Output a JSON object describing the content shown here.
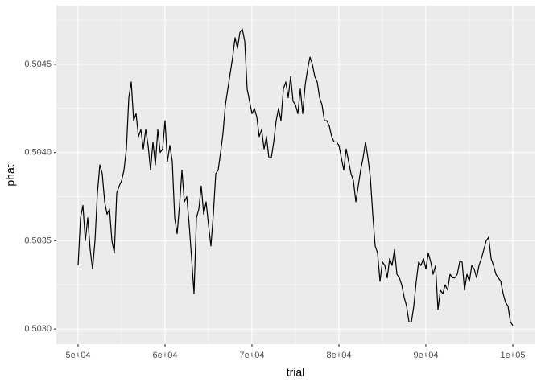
{
  "chart_data": {
    "type": "line",
    "x_label": "trial",
    "y_label": "phat",
    "color": "#000000",
    "grid": true,
    "xlim": [
      47500,
      102500
    ],
    "ylim": [
      0.502914,
      0.504832
    ],
    "xticks": [
      {
        "value": 50000,
        "label": "5e+04"
      },
      {
        "value": 60000,
        "label": "6e+04"
      },
      {
        "value": 70000,
        "label": "7e+04"
      },
      {
        "value": 80000,
        "label": "8e+04"
      },
      {
        "value": 90000,
        "label": "9e+04"
      },
      {
        "value": 100000,
        "label": "1e+05"
      }
    ],
    "yticks": [
      {
        "value": 0.503,
        "label": "0.5030"
      },
      0.5035,
      {
        "value": 0.504,
        "label": "0.5040"
      },
      0.5045
    ],
    "x": [
      50000,
      50278,
      50556,
      50833,
      51111,
      51389,
      51667,
      51944,
      52222,
      52500,
      52778,
      53056,
      53333,
      53611,
      53889,
      54167,
      54444,
      54722,
      55000,
      55278,
      55556,
      55833,
      56111,
      56389,
      56667,
      56944,
      57222,
      57500,
      57778,
      58056,
      58333,
      58611,
      58889,
      59167,
      59444,
      59722,
      60000,
      60278,
      60556,
      60833,
      61111,
      61389,
      61667,
      61944,
      62222,
      62500,
      62778,
      63056,
      63333,
      63611,
      63889,
      64167,
      64444,
      64722,
      65000,
      65278,
      65556,
      65833,
      66111,
      66389,
      66667,
      66944,
      67222,
      67500,
      67778,
      68056,
      68333,
      68611,
      68889,
      69167,
      69444,
      69722,
      70000,
      70278,
      70556,
      70833,
      71111,
      71389,
      71667,
      71944,
      72222,
      72500,
      72778,
      73056,
      73333,
      73611,
      73889,
      74167,
      74444,
      74722,
      75000,
      75278,
      75556,
      75833,
      76111,
      76389,
      76667,
      76944,
      77222,
      77500,
      77778,
      78056,
      78333,
      78611,
      78889,
      79167,
      79444,
      79722,
      80000,
      80278,
      80556,
      80833,
      81111,
      81389,
      81667,
      81944,
      82222,
      82500,
      82778,
      83056,
      83333,
      83611,
      83889,
      84167,
      84444,
      84722,
      85000,
      85278,
      85556,
      85833,
      86111,
      86389,
      86667,
      86944,
      87222,
      87500,
      87778,
      88056,
      88333,
      88611,
      88889,
      89167,
      89444,
      89722,
      90000,
      90278,
      90556,
      90833,
      91111,
      91389,
      91667,
      91944,
      92222,
      92500,
      92778,
      93056,
      93333,
      93611,
      93889,
      94167,
      94444,
      94722,
      95000,
      95278,
      95556,
      95833,
      96111,
      96389,
      96667,
      96944,
      97222,
      97500,
      97778,
      98056,
      98333,
      98611,
      98889,
      99167,
      99444,
      99722,
      100000
    ],
    "values": [
      0.50336,
      0.50363,
      0.5037,
      0.5035,
      0.50363,
      0.50345,
      0.50334,
      0.5035,
      0.50377,
      0.50393,
      0.50388,
      0.50372,
      0.50365,
      0.50368,
      0.5035,
      0.50343,
      0.50377,
      0.50381,
      0.50384,
      0.5039,
      0.50402,
      0.50431,
      0.5044,
      0.50418,
      0.50422,
      0.50409,
      0.50413,
      0.50402,
      0.50413,
      0.50404,
      0.5039,
      0.50406,
      0.50393,
      0.50413,
      0.504,
      0.50402,
      0.50418,
      0.50395,
      0.50404,
      0.50395,
      0.50363,
      0.50354,
      0.5037,
      0.5039,
      0.50372,
      0.50375,
      0.50359,
      0.5034,
      0.5032,
      0.50363,
      0.50368,
      0.50381,
      0.50365,
      0.50372,
      0.50359,
      0.50347,
      0.50365,
      0.50388,
      0.5039,
      0.504,
      0.50411,
      0.50427,
      0.50436,
      0.50445,
      0.50454,
      0.50465,
      0.50459,
      0.50468,
      0.5047,
      0.50463,
      0.50436,
      0.50429,
      0.50422,
      0.50425,
      0.5042,
      0.50409,
      0.50413,
      0.50402,
      0.50409,
      0.50397,
      0.50397,
      0.50406,
      0.50418,
      0.50425,
      0.50418,
      0.50436,
      0.5044,
      0.50431,
      0.50443,
      0.50429,
      0.50427,
      0.50422,
      0.50436,
      0.50422,
      0.50438,
      0.50447,
      0.50454,
      0.5045,
      0.50443,
      0.5044,
      0.50431,
      0.50427,
      0.50418,
      0.50418,
      0.50415,
      0.50409,
      0.50406,
      0.50406,
      0.50404,
      0.50397,
      0.5039,
      0.50402,
      0.50395,
      0.50388,
      0.50384,
      0.50372,
      0.50381,
      0.5039,
      0.50397,
      0.50406,
      0.50397,
      0.50386,
      0.50365,
      0.50347,
      0.50343,
      0.50327,
      0.50338,
      0.50336,
      0.50329,
      0.5034,
      0.50336,
      0.50345,
      0.50331,
      0.50329,
      0.50325,
      0.50318,
      0.50313,
      0.50304,
      0.50304,
      0.50313,
      0.50327,
      0.50338,
      0.50336,
      0.5034,
      0.50334,
      0.50343,
      0.50338,
      0.50331,
      0.50336,
      0.50311,
      0.50322,
      0.5032,
      0.50325,
      0.50322,
      0.50331,
      0.50329,
      0.50329,
      0.50331,
      0.50338,
      0.50338,
      0.50322,
      0.50331,
      0.50327,
      0.50336,
      0.50334,
      0.50329,
      0.50336,
      0.5034,
      0.50345,
      0.5035,
      0.50352,
      0.5034,
      0.50336,
      0.50331,
      0.50329,
      0.50327,
      0.5032,
      0.50315,
      0.50313,
      0.50304,
      0.50302
    ]
  }
}
